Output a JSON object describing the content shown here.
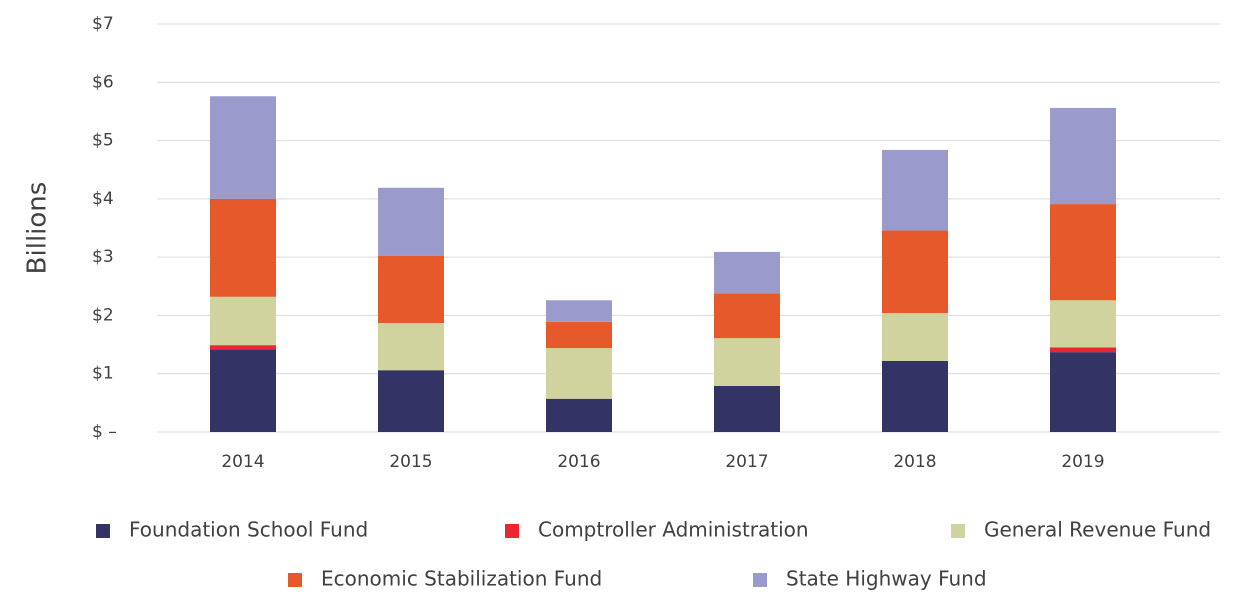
{
  "chart_data": {
    "type": "stacked_bar",
    "y_label": "Billions",
    "categories": [
      "2014",
      "2015",
      "2016",
      "2017",
      "2018",
      "2019"
    ],
    "series": [
      {
        "name": "Foundation School Fund",
        "color": "#333366",
        "values": [
          1.42,
          1.06,
          0.57,
          0.79,
          1.22,
          1.37
        ]
      },
      {
        "name": "Comptroller Administration",
        "color": "#e8282e",
        "values": [
          0.07,
          0,
          0,
          0,
          0,
          0.08
        ]
      },
      {
        "name": "General Revenue Fund",
        "color": "#d1d39e",
        "values": [
          0.83,
          0.81,
          0.87,
          0.82,
          0.82,
          0.81
        ]
      },
      {
        "name": "Economic Stabilization Fund",
        "color": "#e5592a",
        "values": [
          1.68,
          1.15,
          0.45,
          0.77,
          1.42,
          1.65
        ]
      },
      {
        "name": "State Highway Fund",
        "color": "#9a9acc",
        "values": [
          1.76,
          1.17,
          0.37,
          0.71,
          1.38,
          1.65
        ]
      }
    ],
    "ylim": [
      0,
      7
    ],
    "yticks": [
      {
        "value": 0,
        "label": "$ –"
      },
      {
        "value": 1,
        "label": "$1"
      },
      {
        "value": 2,
        "label": "$2"
      },
      {
        "value": 3,
        "label": "$3"
      },
      {
        "value": 4,
        "label": "$4"
      },
      {
        "value": 5,
        "label": "$5"
      },
      {
        "value": 6,
        "label": "$6"
      },
      {
        "value": 7,
        "label": "$7"
      }
    ],
    "grid": true
  }
}
